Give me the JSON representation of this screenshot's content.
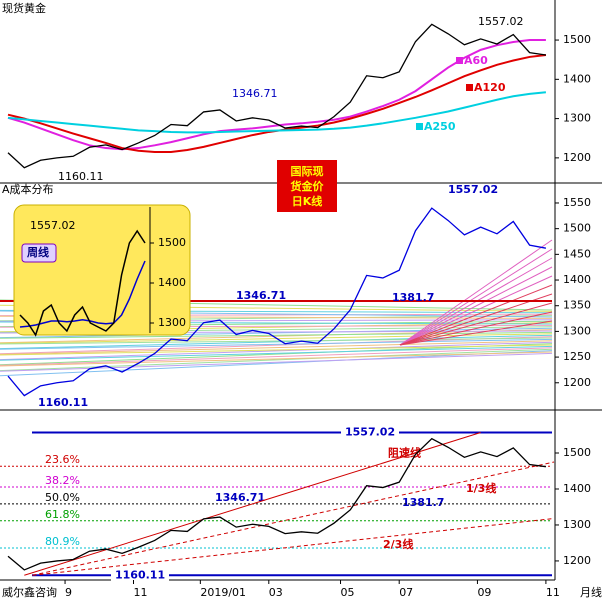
{
  "stamp": [
    "国际现",
    "货金价",
    "日K线"
  ],
  "chart_data": [
    {
      "type": "line",
      "title": "现货黄金",
      "color": "#000000",
      "values": [
        1213,
        1175,
        1194,
        1200,
        1204,
        1227,
        1233,
        1221,
        1238,
        1257,
        1285,
        1282,
        1317,
        1322,
        1294,
        1302,
        1296,
        1276,
        1281,
        1277,
        1305,
        1342,
        1409,
        1404,
        1419,
        1496,
        1540,
        1516,
        1488,
        1503,
        1490,
        1514,
        1468,
        1462
      ],
      "series": [
        {
          "name": "A60",
          "color": "#e020e0",
          "values": [
            1302,
            1290,
            1275,
            1260,
            1245,
            1232,
            1225,
            1222,
            1225,
            1232,
            1240,
            1250,
            1260,
            1268,
            1272,
            1275,
            1280,
            1285,
            1288,
            1292,
            1297,
            1305,
            1318,
            1332,
            1348,
            1370,
            1400,
            1430,
            1455,
            1475,
            1487,
            1495,
            1500,
            1500
          ]
        },
        {
          "name": "A120",
          "color": "#e00000",
          "values": [
            1310,
            1300,
            1288,
            1275,
            1262,
            1250,
            1238,
            1225,
            1218,
            1215,
            1215,
            1220,
            1228,
            1238,
            1248,
            1258,
            1266,
            1272,
            1277,
            1282,
            1290,
            1300,
            1312,
            1325,
            1340,
            1355,
            1372,
            1390,
            1408,
            1423,
            1437,
            1448,
            1457,
            1462
          ]
        },
        {
          "name": "A250",
          "color": "#00d0e0",
          "values": [
            1302,
            1298,
            1294,
            1290,
            1286,
            1282,
            1278,
            1274,
            1270,
            1268,
            1266,
            1265,
            1265,
            1266,
            1267,
            1268,
            1269,
            1270,
            1271,
            1272,
            1274,
            1277,
            1282,
            1288,
            1295,
            1302,
            1310,
            1318,
            1328,
            1338,
            1348,
            1357,
            1363,
            1367
          ]
        }
      ],
      "annotations": [
        "1557.02",
        "1346.71",
        "1160.11"
      ],
      "ylim": [
        1136,
        1602
      ],
      "yticks": [
        1200,
        1300,
        1400,
        1500
      ]
    },
    {
      "type": "line",
      "title": "A成本分布",
      "color": "#0000e0",
      "values": [
        1213,
        1175,
        1194,
        1200,
        1204,
        1227,
        1233,
        1221,
        1238,
        1257,
        1285,
        1282,
        1317,
        1322,
        1294,
        1302,
        1296,
        1276,
        1281,
        1277,
        1305,
        1342,
        1409,
        1404,
        1419,
        1496,
        1540,
        1516,
        1488,
        1503,
        1490,
        1514,
        1468,
        1462
      ],
      "annotations": [
        "1557.02",
        "1346.71",
        "1381.7",
        "1160.11"
      ],
      "ylim": [
        1147,
        1585
      ],
      "yticks": [
        1200,
        1250,
        1300,
        1350,
        1400,
        1450,
        1500,
        1550
      ]
    },
    {
      "type": "line",
      "color": "#000000",
      "values": [
        1213,
        1175,
        1194,
        1200,
        1204,
        1227,
        1233,
        1221,
        1238,
        1257,
        1285,
        1282,
        1317,
        1322,
        1294,
        1302,
        1296,
        1276,
        1281,
        1277,
        1305,
        1342,
        1409,
        1404,
        1419,
        1496,
        1540,
        1516,
        1488,
        1503,
        1490,
        1514,
        1468,
        1462
      ],
      "hlines": [
        {
          "label": "1557.02",
          "value": 1557.02
        },
        {
          "label": "1160.11",
          "value": 1160.11
        }
      ],
      "levels": [
        {
          "name": "23.6%",
          "value": 1463.3,
          "color": "#d00000"
        },
        {
          "name": "38.2%",
          "value": 1405.4,
          "color": "#d000d0"
        },
        {
          "name": "50.0%",
          "value": 1358.6,
          "color": "#000000"
        },
        {
          "name": "61.8%",
          "value": 1311.7,
          "color": "#00a000"
        },
        {
          "name": "80.9%",
          "value": 1235.9,
          "color": "#00c0d0"
        }
      ],
      "trendlines": [
        {
          "name": "阻速线",
          "color": "#d00000",
          "x": [
            1,
            29
          ],
          "values": [
            1160.11,
            1557.02
          ]
        },
        {
          "name": "1/3线",
          "color": "#d00000",
          "x": [
            1.5,
            33.5
          ],
          "values": [
            1160.11,
            1475
          ]
        },
        {
          "name": "2/3线",
          "color": "#d00000",
          "x": [
            1.5,
            33.5
          ],
          "values": [
            1160.11,
            1318
          ]
        }
      ],
      "annotations": [
        "1346.71",
        "1381.7"
      ],
      "xticks": [
        {
          "value": 3.5,
          "label": "9"
        },
        {
          "value": 7.7,
          "label": "11"
        },
        {
          "value": 11.8,
          "label": "2019/01"
        },
        {
          "value": 16,
          "label": "03"
        },
        {
          "value": 20.4,
          "label": "05"
        },
        {
          "value": 24,
          "label": "07"
        },
        {
          "value": 28.8,
          "label": "09"
        },
        {
          "value": 33,
          "label": "11"
        }
      ],
      "source": "威尔鑫咨询",
      "period": "月线",
      "ylim": [
        1147,
        1614
      ],
      "yticks": [
        1200,
        1300,
        1400,
        1500
      ]
    },
    {
      "type": "line",
      "title": "周线",
      "color": "#000000",
      "values": [
        1320,
        1300,
        1270,
        1330,
        1345,
        1300,
        1280,
        1320,
        1340,
        1300,
        1290,
        1280,
        1300,
        1420,
        1500,
        1530,
        1500
      ],
      "ma": {
        "color": "#0000d0",
        "values": [
          1290,
          1292,
          1295,
          1300,
          1305,
          1305,
          1303,
          1305,
          1308,
          1305,
          1300,
          1298,
          1300,
          1320,
          1360,
          1410,
          1455
        ]
      },
      "annotations": [
        "1557.02"
      ],
      "ylim": [
        1275,
        1590
      ],
      "yticks": [
        1300,
        1400,
        1500
      ]
    }
  ]
}
